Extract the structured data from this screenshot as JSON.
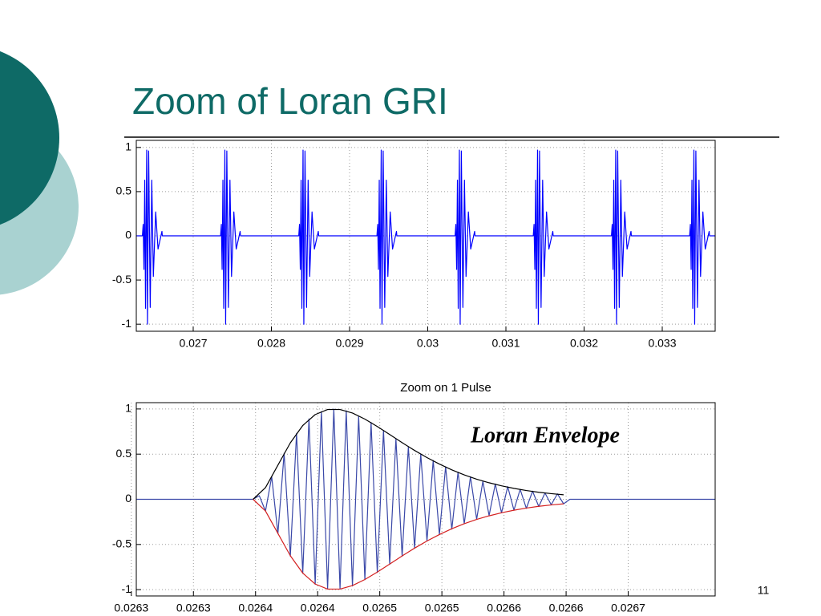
{
  "slide": {
    "title": "Zoom of Loran GRI",
    "number": "11"
  },
  "chart_data": [
    {
      "type": "line",
      "xlim": [
        0.026272,
        0.033677
      ],
      "ylim": [
        -1.08,
        1.08
      ],
      "xticks": [
        0.027,
        0.028,
        0.029,
        0.03,
        0.031,
        0.032,
        0.033
      ],
      "yticks": [
        1,
        0.5,
        0,
        -0.5,
        -1
      ],
      "grid": true,
      "series": [
        {
          "color": "#0000ff",
          "x": [
            0.026272,
            0.02635,
            0.02636,
            0.02637,
            0.02638,
            0.02639,
            0.026405,
            0.026415,
            0.02643,
            0.02645,
            0.02647,
            0.02649,
            0.02652,
            0.02655,
            0.0266,
            0.026605,
            0.02735,
            0.02736,
            0.02737,
            0.02738,
            0.02739,
            0.027405,
            0.027415,
            0.02743,
            0.02745,
            0.02747,
            0.02749,
            0.02752,
            0.02755,
            0.0276,
            0.027605,
            0.02835,
            0.02836,
            0.02837,
            0.02838,
            0.02839,
            0.028405,
            0.028415,
            0.02843,
            0.02845,
            0.02847,
            0.02849,
            0.02852,
            0.02855,
            0.0286,
            0.028605,
            0.02935,
            0.02936,
            0.02937,
            0.02938,
            0.02939,
            0.029405,
            0.029415,
            0.02943,
            0.02945,
            0.02947,
            0.02949,
            0.02952,
            0.02955,
            0.0296,
            0.029605,
            0.03035,
            0.03036,
            0.03037,
            0.03038,
            0.03039,
            0.030405,
            0.030415,
            0.03043,
            0.03045,
            0.03047,
            0.03049,
            0.03052,
            0.03055,
            0.0306,
            0.030605,
            0.03135,
            0.03136,
            0.03137,
            0.03138,
            0.03139,
            0.031405,
            0.031415,
            0.03143,
            0.03145,
            0.03147,
            0.03149,
            0.03152,
            0.03155,
            0.0316,
            0.031605,
            0.03235,
            0.03236,
            0.03237,
            0.03238,
            0.03239,
            0.032405,
            0.032415,
            0.03243,
            0.03245,
            0.03247,
            0.03249,
            0.03252,
            0.03255,
            0.0326,
            0.032605,
            0.03335,
            0.03336,
            0.03337,
            0.03338,
            0.03339,
            0.033405,
            0.033415,
            0.03343,
            0.03345,
            0.03347,
            0.03349,
            0.03352,
            0.03355,
            0.0336,
            0.033605,
            0.033677
          ],
          "values": [
            0,
            0,
            0.13,
            -0.38,
            0.63,
            -0.82,
            0.97,
            -1,
            0.96,
            -0.81,
            0.63,
            -0.46,
            0.27,
            -0.15,
            0.05,
            0,
            0,
            0.13,
            -0.38,
            0.63,
            -0.82,
            0.97,
            -1,
            0.96,
            -0.81,
            0.63,
            -0.46,
            0.27,
            -0.15,
            0.05,
            0,
            0,
            0.13,
            -0.38,
            0.63,
            -0.82,
            0.97,
            -1,
            0.96,
            -0.81,
            0.63,
            -0.46,
            0.27,
            -0.15,
            0.05,
            0,
            0,
            0.13,
            -0.38,
            0.63,
            -0.82,
            0.97,
            -1,
            0.96,
            -0.81,
            0.63,
            -0.46,
            0.27,
            -0.15,
            0.05,
            0,
            0,
            0.13,
            -0.38,
            0.63,
            -0.82,
            0.97,
            -1,
            0.96,
            -0.81,
            0.63,
            -0.46,
            0.27,
            -0.15,
            0.05,
            0,
            0,
            0.13,
            -0.38,
            0.63,
            -0.82,
            0.97,
            -1,
            0.96,
            -0.81,
            0.63,
            -0.46,
            0.27,
            -0.15,
            0.05,
            0,
            0,
            0.13,
            -0.38,
            0.63,
            -0.82,
            0.97,
            -1,
            0.96,
            -0.81,
            0.63,
            -0.46,
            0.27,
            -0.15,
            0.05,
            0,
            0,
            0.13,
            -0.38,
            0.63,
            -0.82,
            0.97,
            -1,
            0.96,
            -0.81,
            0.63,
            -0.46,
            0.27,
            -0.15,
            0.05,
            0,
            0
          ]
        }
      ]
    },
    {
      "type": "line",
      "title": "Zoom on 1 Pulse",
      "annotation": "Loran Envelope",
      "xlim": [
        0.026254,
        0.02672
      ],
      "ylim": [
        -1.07,
        1.07
      ],
      "xticks": [
        {
          "value": 0.02625,
          "label": "0.0263"
        },
        0.0263,
        {
          "value": 0.02635,
          "label": "0.0264"
        },
        0.0264,
        {
          "value": 0.02645,
          "label": "0.0265"
        },
        0.0265,
        {
          "value": 0.02655,
          "label": "0.0266"
        },
        0.0266,
        {
          "value": 0.02665,
          "label": "0.0267"
        }
      ],
      "yticks": [
        1,
        0.5,
        0,
        -0.5,
        -1
      ],
      "grid": true,
      "series": [
        {
          "color": "#3a48a8",
          "x": [
            0.026254,
            0.026348,
            0.026353,
            0.026358,
            0.026363,
            0.026368,
            0.026373,
            0.026378,
            0.026383,
            0.026388,
            0.026393,
            0.026398,
            0.026403,
            0.026408,
            0.026413,
            0.026418,
            0.026423,
            0.026428,
            0.026433,
            0.026438,
            0.026443,
            0.026448,
            0.026453,
            0.026458,
            0.026463,
            0.026468,
            0.026473,
            0.026478,
            0.026483,
            0.026488,
            0.026493,
            0.026498,
            0.026503,
            0.026508,
            0.026513,
            0.026518,
            0.026523,
            0.026528,
            0.026533,
            0.026538,
            0.026543,
            0.026548,
            0.026553,
            0.026558,
            0.026563,
            0.026568,
            0.026573,
            0.026578,
            0.026583,
            0.026588,
            0.026593,
            0.026598,
            0.026603,
            0.02672
          ],
          "values": [
            0,
            0,
            0.04,
            -0.13,
            0.25,
            -0.38,
            0.51,
            -0.63,
            0.73,
            -0.82,
            0.89,
            -0.94,
            0.97,
            -0.99,
            1,
            -0.99,
            0.98,
            -0.96,
            0.92,
            -0.89,
            0.85,
            -0.81,
            0.76,
            -0.72,
            0.67,
            -0.63,
            0.58,
            -0.54,
            0.5,
            -0.46,
            0.43,
            -0.39,
            0.36,
            -0.33,
            0.3,
            -0.27,
            0.25,
            -0.22,
            0.2,
            -0.18,
            0.17,
            -0.15,
            0.14,
            -0.12,
            0.11,
            -0.1,
            0.09,
            -0.08,
            0.07,
            -0.06,
            0.06,
            -0.05,
            0,
            0
          ]
        },
        {
          "color": "#000000",
          "x": [
            0.026348,
            0.026358,
            0.026368,
            0.026378,
            0.026388,
            0.026398,
            0.026408,
            0.026418,
            0.026428,
            0.026438,
            0.026448,
            0.026458,
            0.026468,
            0.026478,
            0.026488,
            0.026498,
            0.026508,
            0.026518,
            0.026528,
            0.026538,
            0.026548,
            0.026558,
            0.026568,
            0.026578,
            0.026588,
            0.026598
          ],
          "values": [
            0,
            0.129,
            0.378,
            0.625,
            0.817,
            0.938,
            0.994,
            0.994,
            0.955,
            0.888,
            0.806,
            0.717,
            0.627,
            0.541,
            0.462,
            0.39,
            0.326,
            0.27,
            0.223,
            0.183,
            0.149,
            0.121,
            0.097,
            0.078,
            0.063,
            0.05
          ]
        },
        {
          "color": "#d42020",
          "x": [
            0.026348,
            0.026358,
            0.026368,
            0.026378,
            0.026388,
            0.026398,
            0.026408,
            0.026418,
            0.026428,
            0.026438,
            0.026448,
            0.026458,
            0.026468,
            0.026478,
            0.026488,
            0.026498,
            0.026508,
            0.026518,
            0.026528,
            0.026538,
            0.026548,
            0.026558,
            0.026568,
            0.026578,
            0.026588,
            0.026598
          ],
          "values": [
            0,
            -0.129,
            -0.378,
            -0.625,
            -0.817,
            -0.938,
            -0.994,
            -0.994,
            -0.955,
            -0.888,
            -0.806,
            -0.717,
            -0.627,
            -0.541,
            -0.462,
            -0.39,
            -0.326,
            -0.27,
            -0.223,
            -0.183,
            -0.149,
            -0.121,
            -0.097,
            -0.078,
            -0.063,
            -0.05
          ]
        }
      ]
    }
  ]
}
